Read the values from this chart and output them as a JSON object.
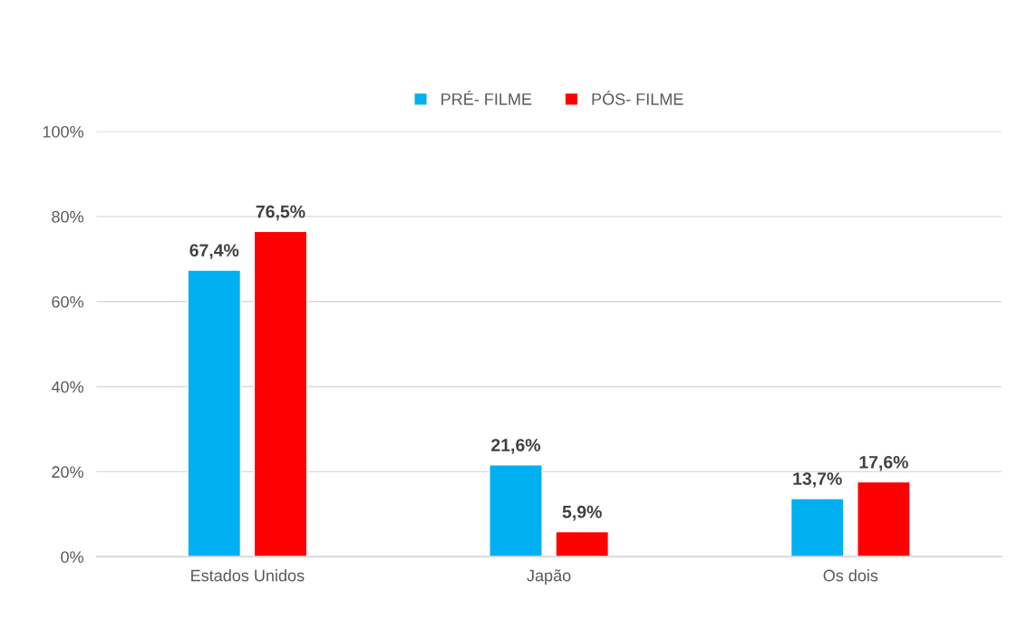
{
  "chart_data": {
    "type": "bar",
    "categories": [
      "Estados Unidos",
      "Japão",
      "Os dois"
    ],
    "series": [
      {
        "name": "PRÉ- FILME",
        "color": "#00b0f0",
        "values": [
          67.4,
          21.6,
          13.7
        ],
        "value_labels": [
          "67,4%",
          "21,6%",
          "13,7%"
        ]
      },
      {
        "name": "PÓS- FILME",
        "color": "#ff0000",
        "values": [
          76.5,
          5.9,
          17.6
        ],
        "value_labels": [
          "76,5%",
          "5,9%",
          "17,6%"
        ]
      }
    ],
    "ylim": [
      0,
      100
    ],
    "yticks": [
      {
        "value": 0,
        "label": "0%"
      },
      {
        "value": 20,
        "label": "20%"
      },
      {
        "value": 40,
        "label": "40%"
      },
      {
        "value": 60,
        "label": "60%"
      },
      {
        "value": 80,
        "label": "80%"
      },
      {
        "value": 100,
        "label": "100%"
      }
    ],
    "grid": "y",
    "legend": "top"
  }
}
